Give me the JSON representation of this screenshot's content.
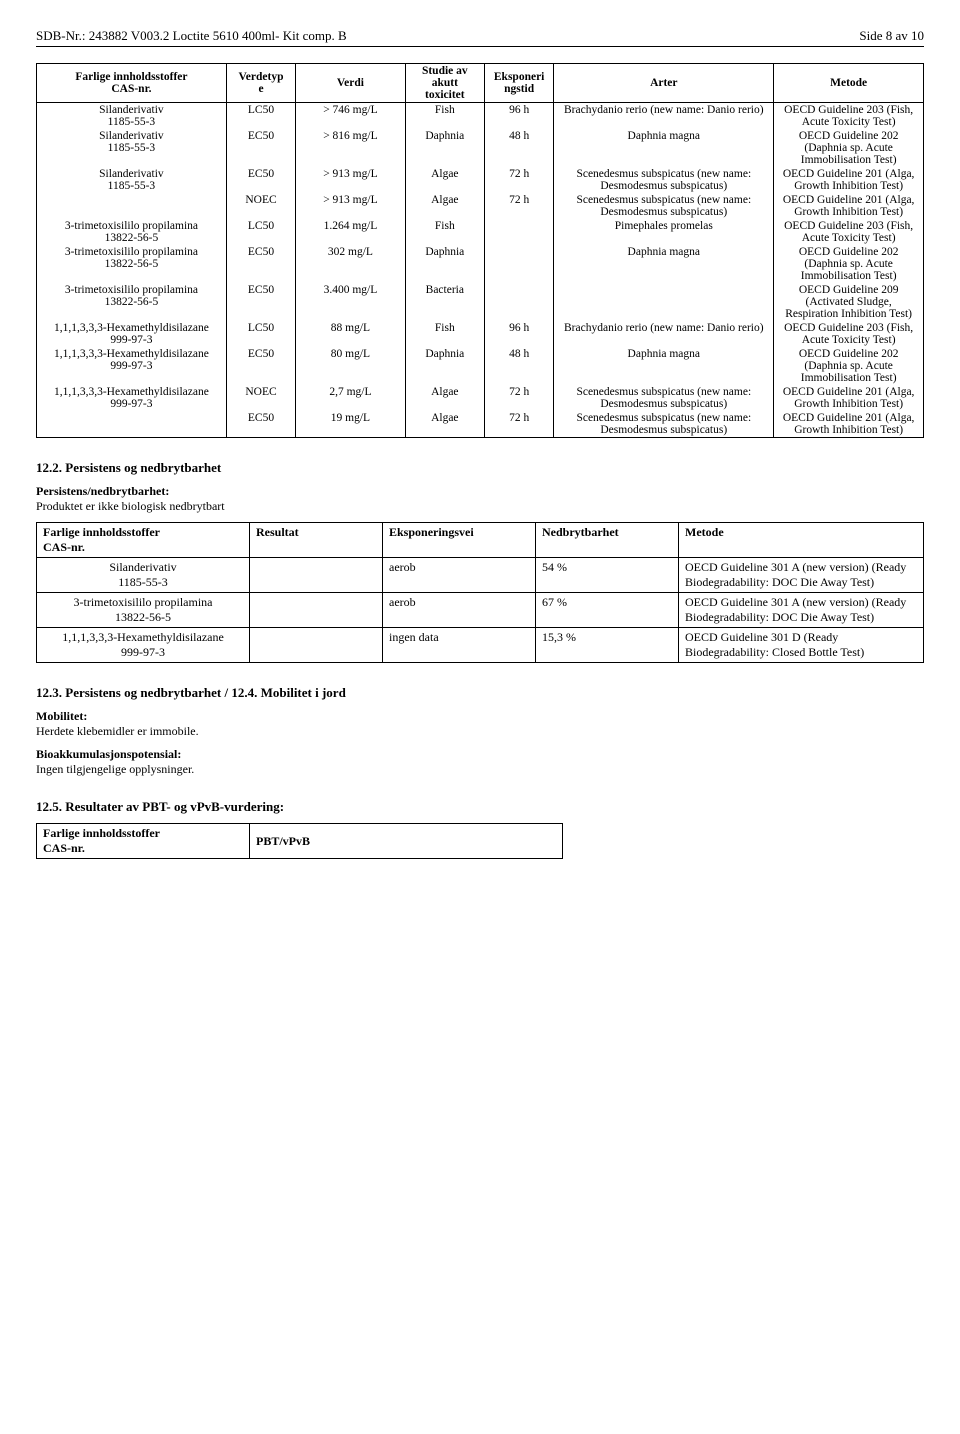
{
  "header": {
    "left": "SDB-Nr.: 243882   V003.2   Loctite 5610 400ml- Kit comp. B",
    "right": "Side 8 av 10"
  },
  "table1": {
    "headers": [
      "Farlige innholdsstoffer\nCAS-nr.",
      "Verdetyp\ne",
      "Verdi",
      "Studie av\nakutt\ntoxicitet",
      "Eksponeri\nngstid",
      "Arter",
      "Metode"
    ],
    "rows": [
      {
        "sub": "Silanderivativ",
        "cas": "1185-55-3",
        "vt": "LC50",
        "val": "> 746 mg/L",
        "stu": "Fish",
        "exp": "96 h",
        "art": "Brachydanio rerio (new name: Danio rerio)",
        "met": "OECD Guideline 203 (Fish, Acute Toxicity Test)"
      },
      {
        "sub": "Silanderivativ",
        "cas": "1185-55-3",
        "vt": "EC50",
        "val": "> 816 mg/L",
        "stu": "Daphnia",
        "exp": "48 h",
        "art": "Daphnia magna",
        "met": "OECD Guideline 202 (Daphnia sp. Acute Immobilisation Test)"
      },
      {
        "sub": "Silanderivativ",
        "cas": "1185-55-3",
        "vt": "EC50",
        "val": "> 913 mg/L",
        "stu": "Algae",
        "exp": "72 h",
        "art": "Scenedesmus subspicatus (new name: Desmodesmus subspicatus)",
        "met": "OECD Guideline 201 (Alga, Growth Inhibition Test)"
      },
      {
        "sub": "",
        "cas": "",
        "vt": "NOEC",
        "val": "> 913 mg/L",
        "stu": "Algae",
        "exp": "72 h",
        "art": "Scenedesmus subspicatus (new name: Desmodesmus subspicatus)",
        "met": "OECD Guideline 201 (Alga, Growth Inhibition Test)"
      },
      {
        "sub": "3-trimetoxisililo propilamina",
        "cas": "13822-56-5",
        "vt": "LC50",
        "val": "1.264 mg/L",
        "stu": "Fish",
        "exp": "",
        "art": "Pimephales promelas",
        "met": "OECD Guideline 203 (Fish, Acute Toxicity Test)"
      },
      {
        "sub": "3-trimetoxisililo propilamina",
        "cas": "13822-56-5",
        "vt": "EC50",
        "val": "302 mg/L",
        "stu": "Daphnia",
        "exp": "",
        "art": "Daphnia magna",
        "met": "OECD Guideline 202 (Daphnia sp. Acute Immobilisation Test)"
      },
      {
        "sub": "3-trimetoxisililo propilamina",
        "cas": "13822-56-5",
        "vt": "EC50",
        "val": "3.400 mg/L",
        "stu": "Bacteria",
        "exp": "",
        "art": "",
        "met": "OECD Guideline 209 (Activated Sludge, Respiration Inhibition Test)"
      },
      {
        "sub": "1,1,1,3,3,3-Hexamethyldisilazane",
        "cas": "999-97-3",
        "vt": "LC50",
        "val": "88 mg/L",
        "stu": "Fish",
        "exp": "96 h",
        "art": "Brachydanio rerio (new name: Danio rerio)",
        "met": "OECD Guideline 203 (Fish, Acute Toxicity Test)"
      },
      {
        "sub": "1,1,1,3,3,3-Hexamethyldisilazane",
        "cas": "999-97-3",
        "vt": "EC50",
        "val": "80 mg/L",
        "stu": "Daphnia",
        "exp": "48 h",
        "art": "Daphnia magna",
        "met": "OECD Guideline 202 (Daphnia sp. Acute Immobilisation Test)"
      },
      {
        "sub": "1,1,1,3,3,3-Hexamethyldisilazane",
        "cas": "999-97-3",
        "vt": "NOEC",
        "val": "2,7 mg/L",
        "stu": "Algae",
        "exp": "72 h",
        "art": "Scenedesmus subspicatus (new name: Desmodesmus subspicatus)",
        "met": "OECD Guideline 201 (Alga, Growth Inhibition Test)"
      },
      {
        "sub": "",
        "cas": "",
        "vt": "EC50",
        "val": "19 mg/L",
        "stu": "Algae",
        "exp": "72 h",
        "art": "Scenedesmus subspicatus (new name: Desmodesmus subspicatus)",
        "met": "OECD Guideline 201 (Alga, Growth Inhibition Test)"
      }
    ]
  },
  "section122": {
    "title": "12.2. Persistens og nedbrytbarhet",
    "sub": "Persistens/nedbrytbarhet:",
    "text": "Produktet er ikke biologisk nedbrytbart"
  },
  "table2": {
    "headers": [
      "Farlige innholdsstoffer\nCAS-nr.",
      "Resultat",
      "Eksponeringsvei",
      "Nedbrytbarhet",
      "Metode"
    ],
    "rows": [
      {
        "sub": "Silanderivativ",
        "cas": "1185-55-3",
        "res": "",
        "exp": "aerob",
        "ned": "54 %",
        "met": "OECD Guideline 301 A (new version) (Ready Biodegradability: DOC Die Away Test)"
      },
      {
        "sub": "3-trimetoxisililo propilamina",
        "cas": "13822-56-5",
        "res": "",
        "exp": "aerob",
        "ned": "67 %",
        "met": "OECD Guideline 301 A (new version) (Ready Biodegradability: DOC Die Away Test)"
      },
      {
        "sub": "1,1,1,3,3,3-Hexamethyldisilazane",
        "cas": "999-97-3",
        "res": "",
        "exp": "ingen data",
        "ned": "15,3 %",
        "met": "OECD Guideline 301 D (Ready Biodegradability: Closed Bottle Test)"
      }
    ]
  },
  "section123": {
    "title": "12.3. Persistens og nedbrytbarhet / 12.4. Mobilitet i jord",
    "mob_label": "Mobilitet:",
    "mob_text": "Herdete klebemidler er immobile.",
    "bio_label": "Bioakkumulasjonspotensial:",
    "bio_text": "Ingen tilgjengelige opplysninger."
  },
  "section125": {
    "title": "12.5. Resultater av PBT- og vPvB-vurdering:",
    "table": {
      "left": "Farlige innholdsstoffer\nCAS-nr.",
      "right": "PBT/vPvB"
    }
  }
}
